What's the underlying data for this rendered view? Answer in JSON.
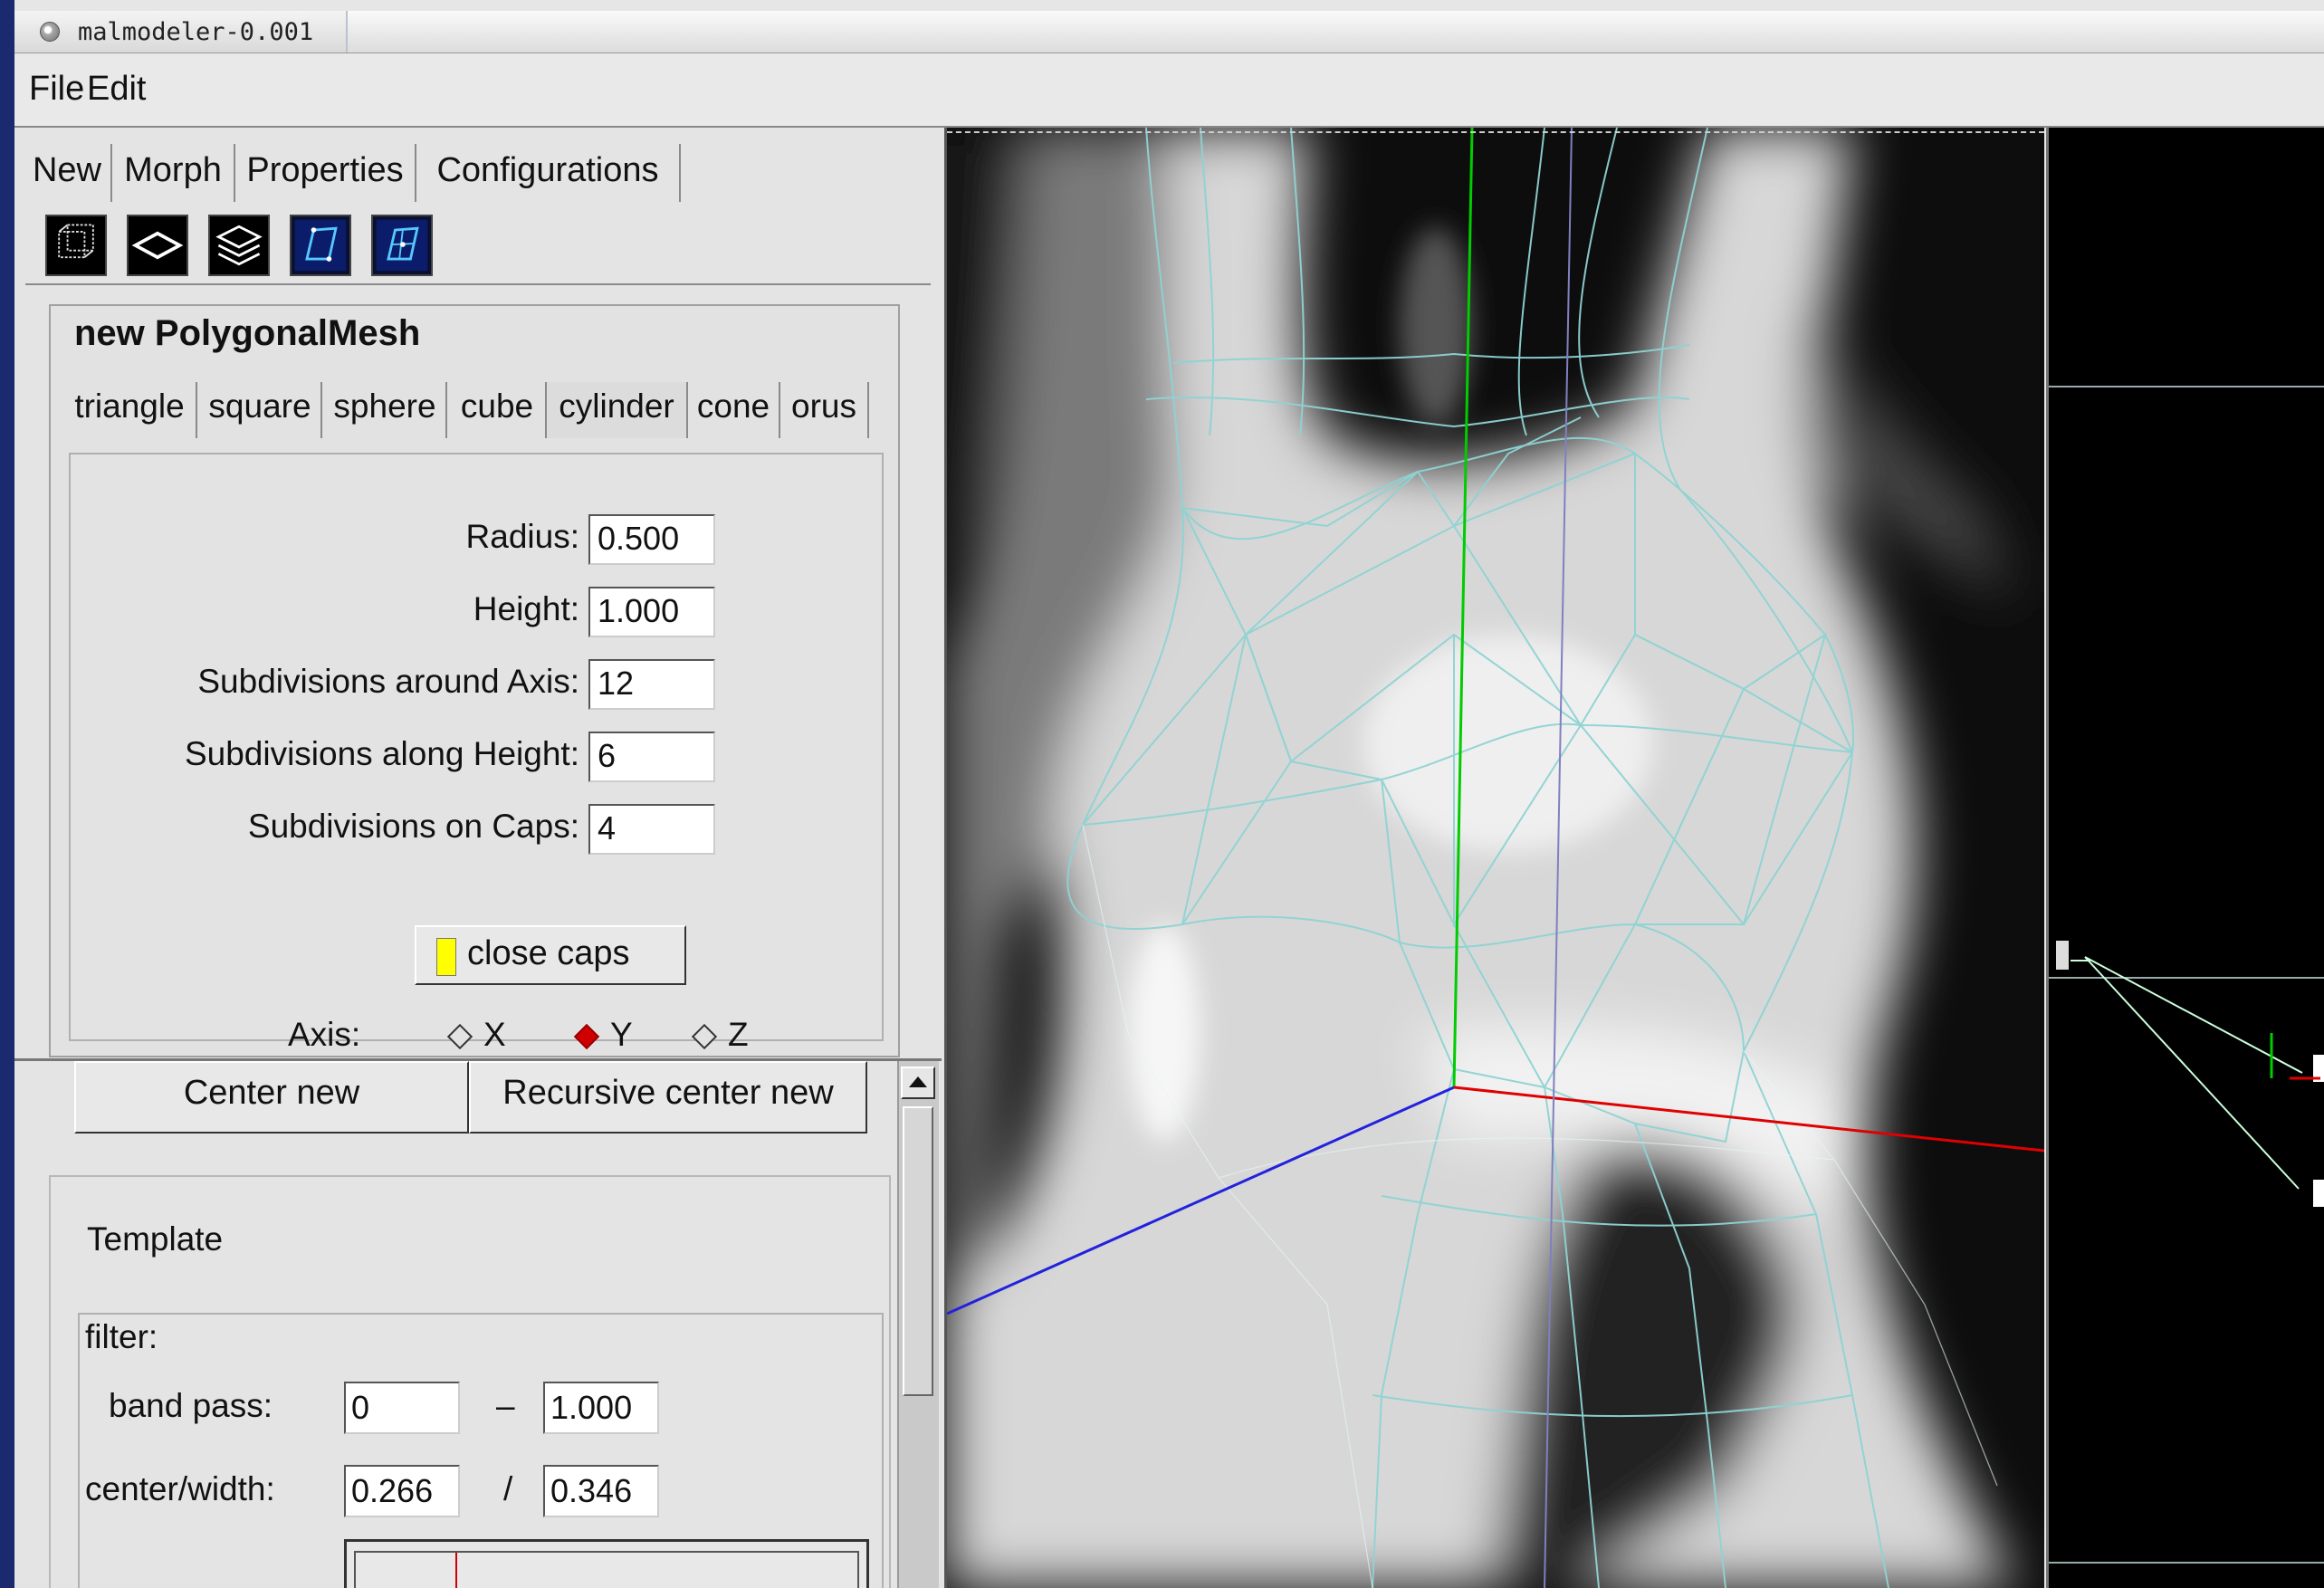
{
  "window": {
    "title": "malmodeler-0.001"
  },
  "menu": {
    "file": "File",
    "edit": "Edit"
  },
  "main_tabs": [
    "New",
    "Morph",
    "Properties",
    "Configurations"
  ],
  "toolbar": {
    "icons": [
      "wireframe-cube-icon",
      "plane-icon",
      "layers-icon",
      "morph-icon",
      "grid-morph-icon"
    ]
  },
  "new_mesh": {
    "title": "new PolygonalMesh",
    "shape_tabs": [
      "triangle",
      "square",
      "sphere",
      "cube",
      "cylinder",
      "cone",
      "orus"
    ],
    "fields": [
      {
        "label": "Radius:",
        "value": "0.500"
      },
      {
        "label": "Height:",
        "value": "1.000"
      },
      {
        "label": "Subdivisions around Axis:",
        "value": "12"
      },
      {
        "label": "Subdivisions along Height:",
        "value": "6"
      },
      {
        "label": "Subdivisions on Caps:",
        "value": "4"
      }
    ],
    "close_caps": {
      "label": "close caps",
      "checked": true
    },
    "axis": {
      "label": "Axis:",
      "options": [
        "X",
        "Y",
        "Z"
      ],
      "selected": "Y"
    }
  },
  "center": {
    "center_new": "Center new",
    "recursive_center_new": "Recursive center new"
  },
  "template": {
    "label": "Templatе",
    "filter_label": "filter:",
    "band_pass": {
      "label": "band pass:",
      "low": "0",
      "separator": "–",
      "high": "1.000"
    },
    "center_width": {
      "label": "center/width:",
      "center": "0.266",
      "separator": "/",
      "width": "0.346"
    }
  },
  "colors": {
    "x_axis": "#e00000",
    "y_axis": "#00cc00",
    "z_axis": "#2222dd",
    "wireframe": "#8fd3d3",
    "close_caps_indicator": "#ffff00"
  }
}
